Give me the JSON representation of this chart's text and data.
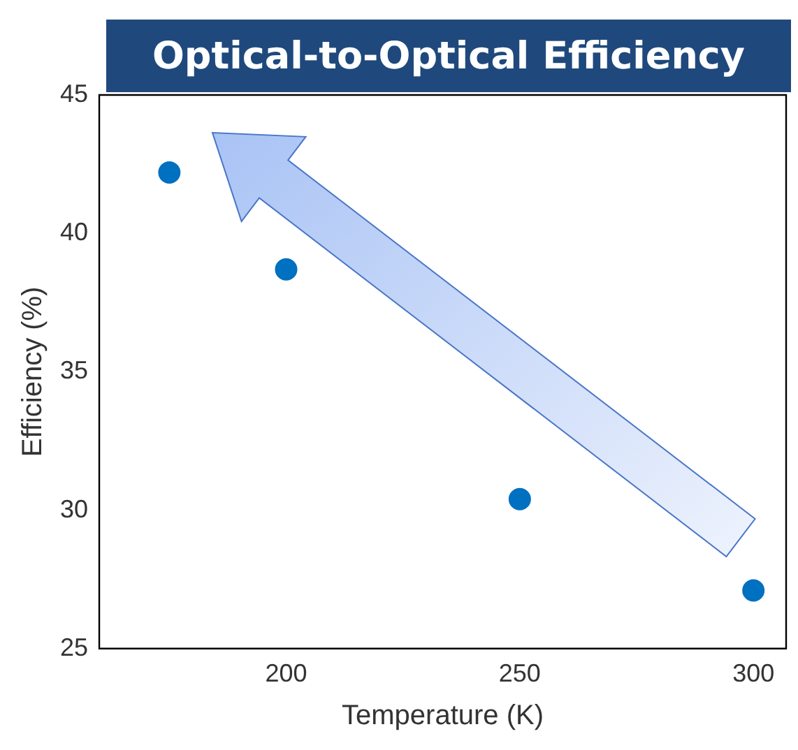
{
  "chart_data": {
    "type": "scatter",
    "title": "Optical-to-Optical Efficiency",
    "xlabel": "Temperature (K)",
    "ylabel": "Efficiency (%)",
    "x": [
      175,
      200,
      250,
      300
    ],
    "series": [
      {
        "color": "#0070c0",
        "values": [
          42.2,
          38.7,
          30.4,
          27.1
        ]
      }
    ],
    "xlim": [
      160,
      307
    ],
    "xticks": [
      200,
      250,
      300
    ],
    "ylim": [
      25,
      45
    ],
    "yticks": [
      25,
      30,
      35,
      40,
      45
    ],
    "grid": false,
    "legend": false,
    "marker": "circle"
  }
}
